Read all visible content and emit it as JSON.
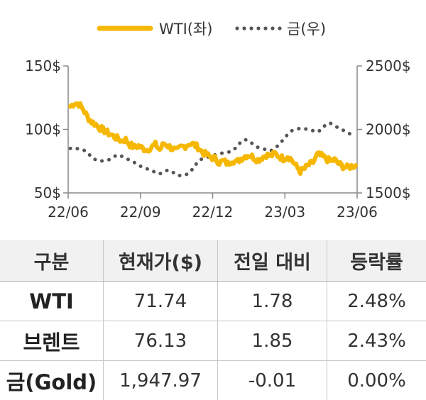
{
  "chart_data": {
    "type": "line",
    "legend": {
      "placement": "top-center"
    },
    "x_ticks": [
      "22/06",
      "22/09",
      "22/12",
      "23/03",
      "23/06"
    ],
    "y_left": {
      "ticks": [
        "150$",
        "100$",
        "50$"
      ],
      "range": [
        50,
        150
      ]
    },
    "y_right": {
      "ticks": [
        "2500$",
        "2000$",
        "1500$"
      ],
      "range": [
        1500,
        2500
      ]
    },
    "series": [
      {
        "name": "WTI(좌)",
        "axis": "left",
        "color": "#F5B700",
        "style": "solid",
        "values": [
          118,
          121,
          120,
          116,
          110,
          106,
          104,
          101,
          99,
          97,
          95,
          93,
          91,
          92,
          88,
          86,
          87,
          85,
          84,
          86,
          88,
          84,
          89,
          87,
          85,
          83,
          86,
          87,
          89,
          88,
          86,
          82,
          80,
          78,
          77,
          74,
          75,
          73,
          76,
          74,
          77,
          79,
          80,
          78,
          76,
          78,
          80,
          79,
          81,
          79,
          77,
          79,
          76,
          71,
          67,
          69,
          72,
          74,
          80,
          79,
          77,
          75,
          76,
          73,
          71,
          70,
          71,
          71.74
        ]
      },
      {
        "name": "금(우)",
        "axis": "right",
        "color": "#555555",
        "style": "dotted",
        "values": [
          1850,
          1855,
          1845,
          1840,
          1820,
          1780,
          1760,
          1750,
          1755,
          1760,
          1780,
          1800,
          1790,
          1770,
          1760,
          1740,
          1720,
          1700,
          1690,
          1680,
          1660,
          1650,
          1670,
          1680,
          1665,
          1640,
          1635,
          1640,
          1660,
          1700,
          1750,
          1770,
          1780,
          1790,
          1800,
          1810,
          1815,
          1820,
          1830,
          1860,
          1900,
          1920,
          1910,
          1880,
          1860,
          1850,
          1840,
          1830,
          1850,
          1880,
          1920,
          1960,
          1990,
          2000,
          2010,
          2005,
          2000,
          1990,
          1980,
          2000,
          2040,
          2050,
          2030,
          2010,
          1995,
          1975,
          1960,
          1947.97
        ]
      }
    ]
  },
  "table": {
    "headers": [
      "구분",
      "현재가($)",
      "전일 대비",
      "등락률"
    ],
    "rows": [
      {
        "name": "WTI",
        "price": "71.74",
        "change": "1.78",
        "rate": "2.48%"
      },
      {
        "name": "브렌트",
        "price": "76.13",
        "change": "1.85",
        "rate": "2.43%"
      },
      {
        "name": "금(Gold)",
        "price": "1,947.97",
        "change": "-0.01",
        "rate": "0.00%"
      }
    ]
  }
}
